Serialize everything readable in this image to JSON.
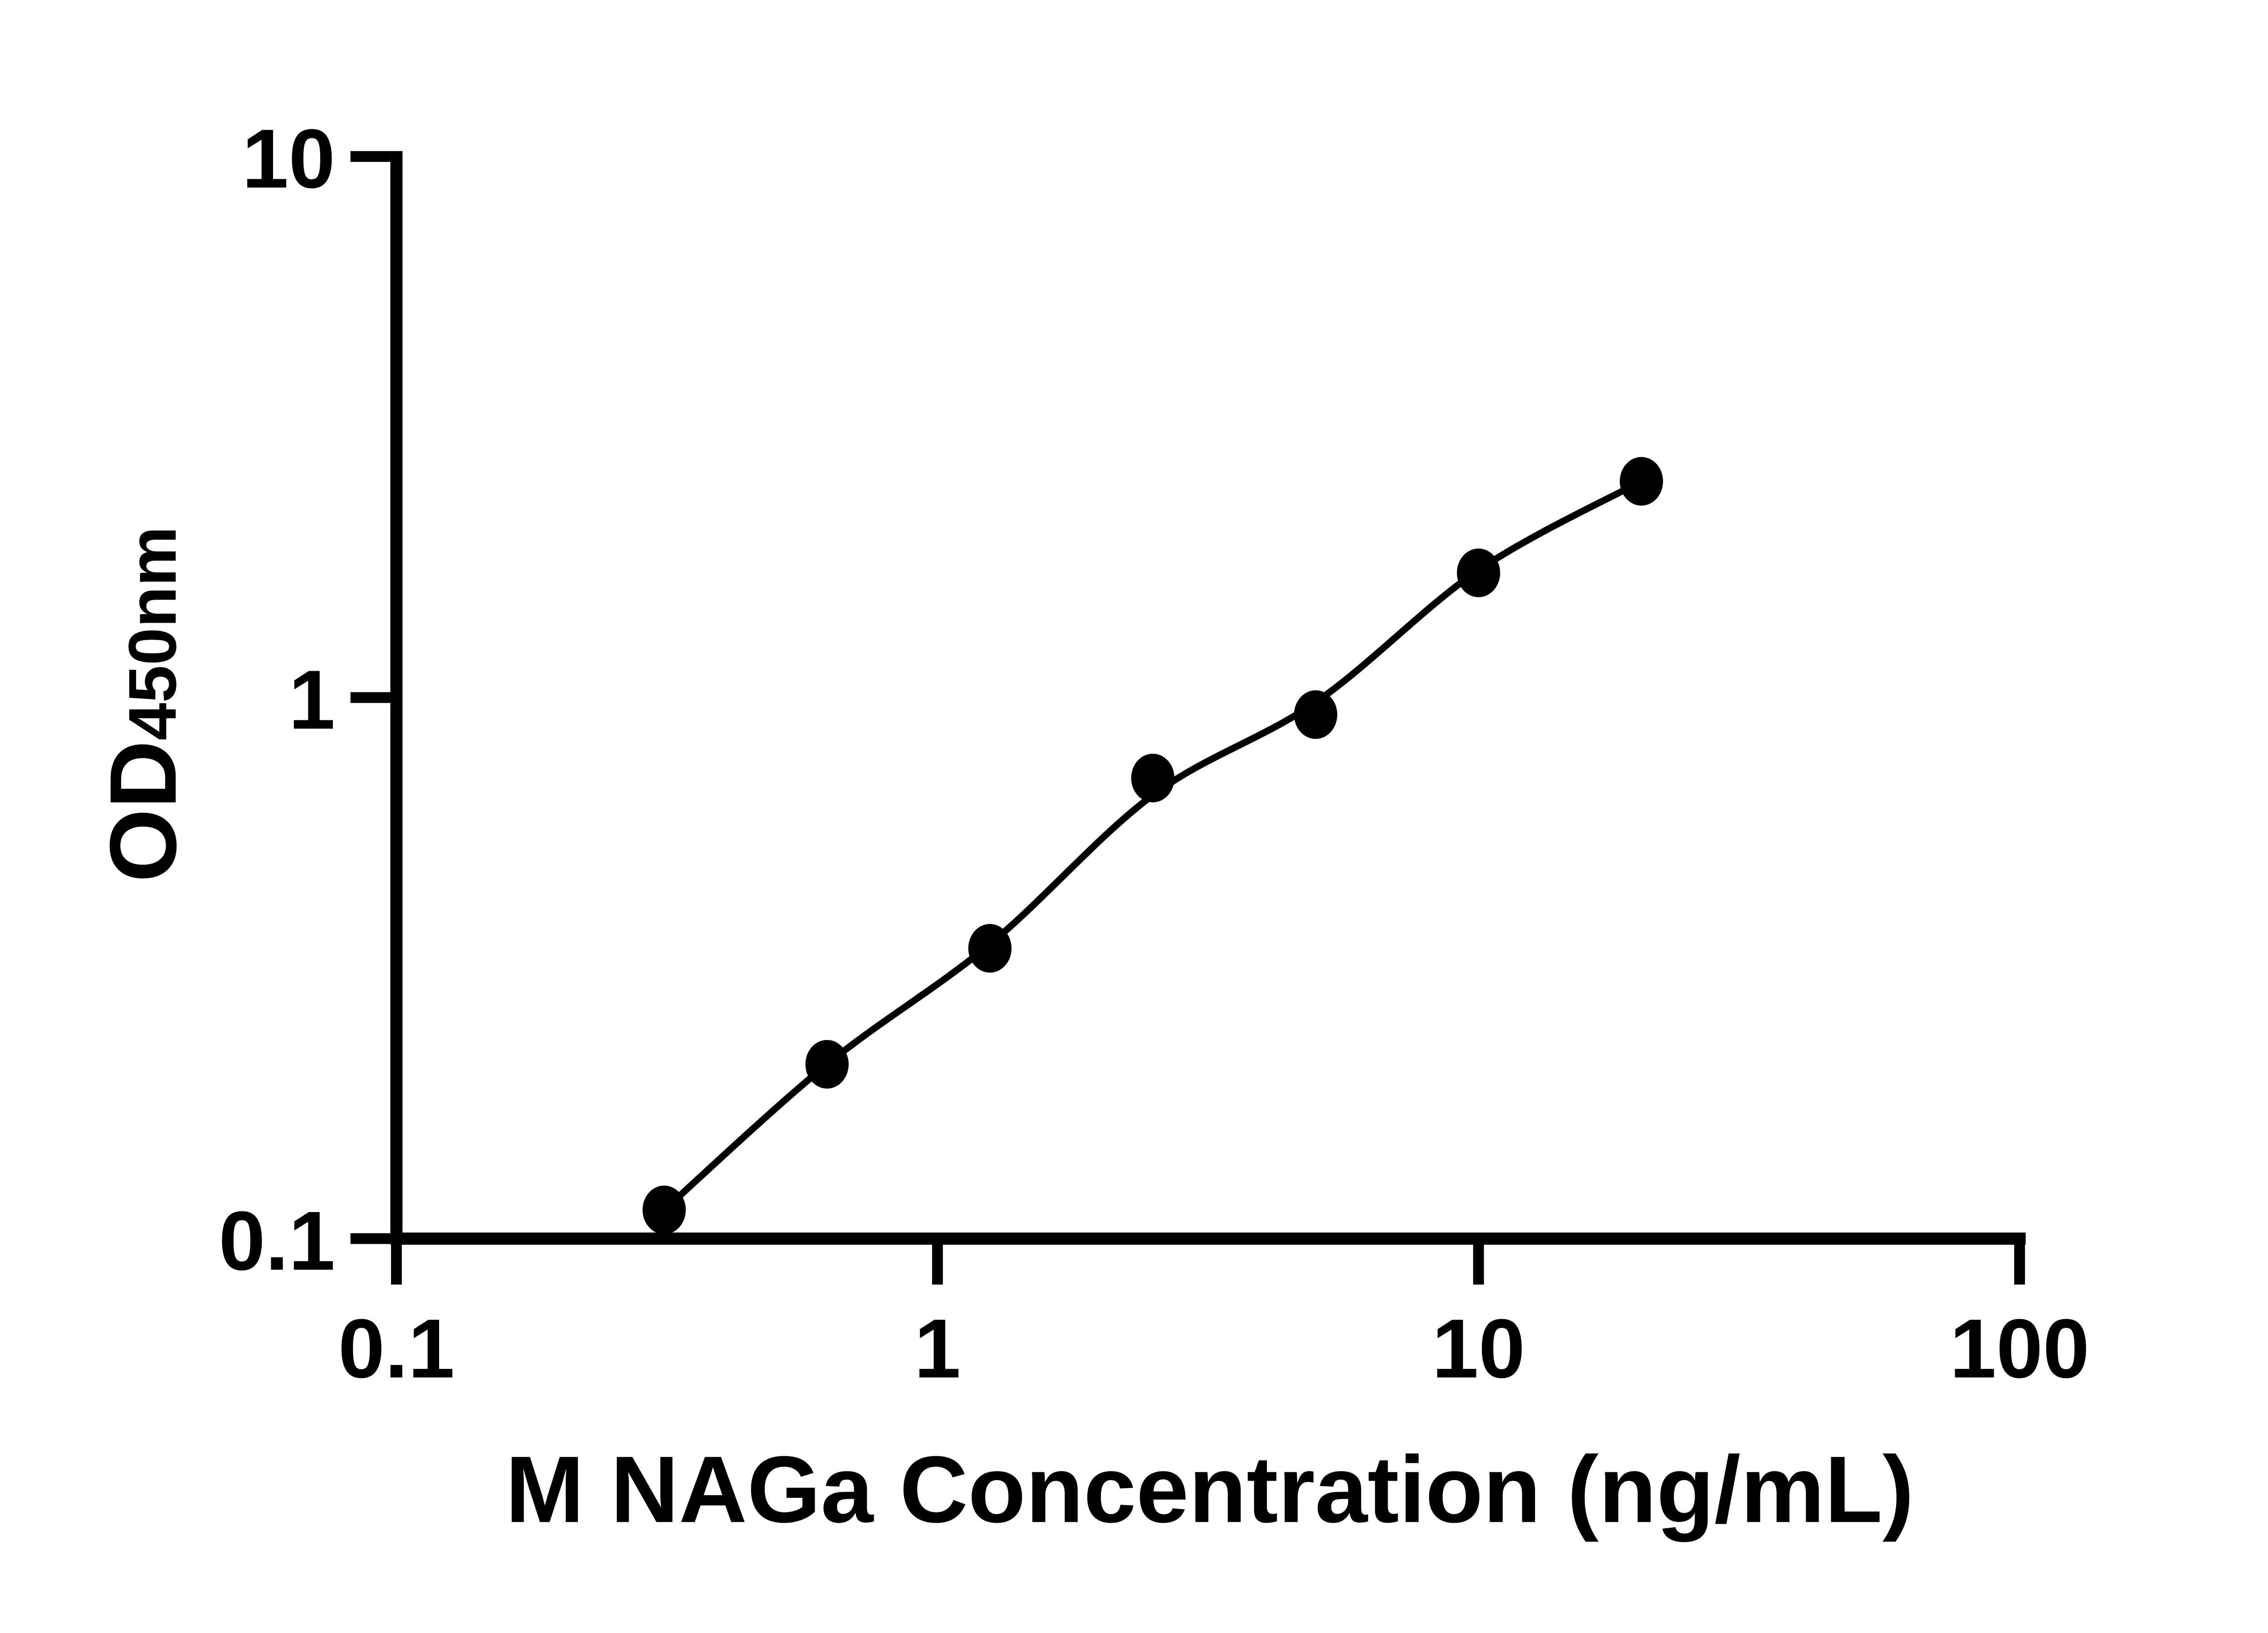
{
  "chart_data": {
    "type": "scatter",
    "title": "",
    "xlabel": "M NAGa Concentration (ng/mL)",
    "ylabel_main": "OD",
    "ylabel_sub": "450nm",
    "x_scale": "log",
    "y_scale": "log",
    "xlim": [
      0.1,
      100
    ],
    "ylim": [
      0.1,
      10
    ],
    "x_ticks": [
      0.1,
      1,
      10,
      100
    ],
    "x_tick_labels": [
      "0.1",
      "1",
      "10",
      "100"
    ],
    "y_ticks": [
      0.1,
      1,
      10
    ],
    "y_tick_labels": [
      "0.1",
      "1",
      "10"
    ],
    "grid": false,
    "legend": null,
    "series": [
      {
        "name": "standard-points",
        "type": "scatter",
        "marker": "filled-circle",
        "color": "#000000",
        "x": [
          0.3125,
          0.625,
          1.25,
          2.5,
          5,
          10,
          20
        ],
        "y": [
          0.113,
          0.21,
          0.344,
          0.71,
          0.93,
          1.7,
          2.51
        ]
      },
      {
        "name": "fitted-curve",
        "type": "line",
        "color": "#000000",
        "x": [
          0.3125,
          0.625,
          1.25,
          2.5,
          5,
          10,
          20
        ],
        "y": [
          0.113,
          0.21,
          0.35,
          0.66,
          0.98,
          1.72,
          2.51
        ]
      }
    ]
  },
  "styles": {
    "background": "#ffffff",
    "axis_color": "#000000",
    "marker_color": "#000000",
    "line_color": "#000000"
  }
}
